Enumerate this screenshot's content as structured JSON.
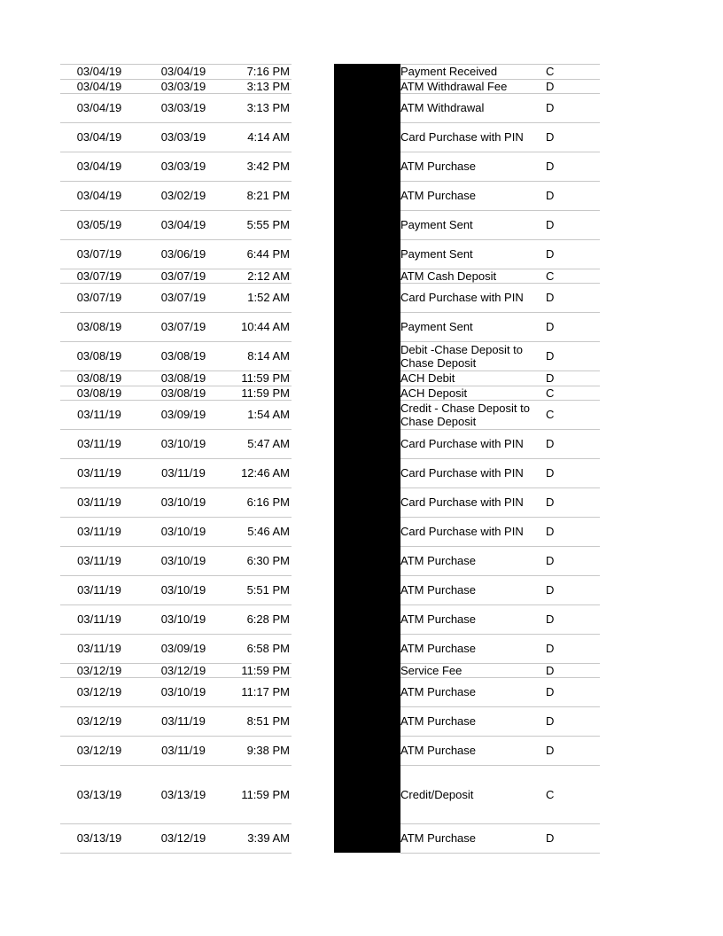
{
  "transactions": [
    {
      "post_date": "03/04/19",
      "trans_date": "03/04/19",
      "time": "7:16 PM",
      "description": "Payment Received",
      "type": "C"
    },
    {
      "post_date": "03/04/19",
      "trans_date": "03/03/19",
      "time": "3:13 PM",
      "description": "ATM Withdrawal Fee",
      "type": "D"
    },
    {
      "post_date": "03/04/19",
      "trans_date": "03/03/19",
      "time": "3:13 PM",
      "description": "ATM Withdrawal",
      "type": "D"
    },
    {
      "post_date": "03/04/19",
      "trans_date": "03/03/19",
      "time": "4:14 AM",
      "description": "Card Purchase with PIN",
      "type": "D"
    },
    {
      "post_date": "03/04/19",
      "trans_date": "03/03/19",
      "time": "3:42 PM",
      "description": "ATM Purchase",
      "type": "D"
    },
    {
      "post_date": "03/04/19",
      "trans_date": "03/02/19",
      "time": "8:21 PM",
      "description": "ATM Purchase",
      "type": "D"
    },
    {
      "post_date": "03/05/19",
      "trans_date": "03/04/19",
      "time": "5:55 PM",
      "description": "Payment Sent",
      "type": "D"
    },
    {
      "post_date": "03/07/19",
      "trans_date": "03/06/19",
      "time": "6:44 PM",
      "description": "Payment Sent",
      "type": "D"
    },
    {
      "post_date": "03/07/19",
      "trans_date": "03/07/19",
      "time": "2:12 AM",
      "description": "ATM Cash Deposit",
      "type": "C"
    },
    {
      "post_date": "03/07/19",
      "trans_date": "03/07/19",
      "time": "1:52 AM",
      "description": "Card Purchase with PIN",
      "type": "D"
    },
    {
      "post_date": "03/08/19",
      "trans_date": "03/07/19",
      "time": "10:44 AM",
      "description": "Payment Sent",
      "type": "D"
    },
    {
      "post_date": "03/08/19",
      "trans_date": "03/08/19",
      "time": "8:14 AM",
      "description": "Debit -Chase Deposit to Chase Deposit",
      "type": "D"
    },
    {
      "post_date": "03/08/19",
      "trans_date": "03/08/19",
      "time": "11:59 PM",
      "description": "ACH Debit",
      "type": "D"
    },
    {
      "post_date": "03/08/19",
      "trans_date": "03/08/19",
      "time": "11:59 PM",
      "description": "ACH Deposit",
      "type": "C"
    },
    {
      "post_date": "03/11/19",
      "trans_date": "03/09/19",
      "time": "1:54 AM",
      "description": "Credit - Chase Deposit to Chase Deposit",
      "type": "C"
    },
    {
      "post_date": "03/11/19",
      "trans_date": "03/10/19",
      "time": "5:47 AM",
      "description": "Card Purchase with PIN",
      "type": "D"
    },
    {
      "post_date": "03/11/19",
      "trans_date": "03/11/19",
      "time": "12:46 AM",
      "description": "Card Purchase with PIN",
      "type": "D"
    },
    {
      "post_date": "03/11/19",
      "trans_date": "03/10/19",
      "time": "6:16 PM",
      "description": "Card Purchase with PIN",
      "type": "D"
    },
    {
      "post_date": "03/11/19",
      "trans_date": "03/10/19",
      "time": "5:46 AM",
      "description": "Card Purchase with PIN",
      "type": "D"
    },
    {
      "post_date": "03/11/19",
      "trans_date": "03/10/19",
      "time": "6:30 PM",
      "description": "ATM Purchase",
      "type": "D"
    },
    {
      "post_date": "03/11/19",
      "trans_date": "03/10/19",
      "time": "5:51 PM",
      "description": "ATM Purchase",
      "type": "D"
    },
    {
      "post_date": "03/11/19",
      "trans_date": "03/10/19",
      "time": "6:28 PM",
      "description": "ATM Purchase",
      "type": "D"
    },
    {
      "post_date": "03/11/19",
      "trans_date": "03/09/19",
      "time": "6:58 PM",
      "description": "ATM Purchase",
      "type": "D"
    },
    {
      "post_date": "03/12/19",
      "trans_date": "03/12/19",
      "time": "11:59 PM",
      "description": "Service Fee",
      "type": "D"
    },
    {
      "post_date": "03/12/19",
      "trans_date": "03/10/19",
      "time": "11:17 PM",
      "description": "ATM Purchase",
      "type": "D"
    },
    {
      "post_date": "03/12/19",
      "trans_date": "03/11/19",
      "time": "8:51 PM",
      "description": "ATM Purchase",
      "type": "D"
    },
    {
      "post_date": "03/12/19",
      "trans_date": "03/11/19",
      "time": "9:38 PM",
      "description": "ATM Purchase",
      "type": "D"
    },
    {
      "post_date": "03/13/19",
      "trans_date": "03/13/19",
      "time": "11:59 PM",
      "description": "Credit/Deposit",
      "type": "C"
    },
    {
      "post_date": "03/13/19",
      "trans_date": "03/12/19",
      "time": "3:39 AM",
      "description": "ATM Purchase",
      "type": "D"
    }
  ]
}
